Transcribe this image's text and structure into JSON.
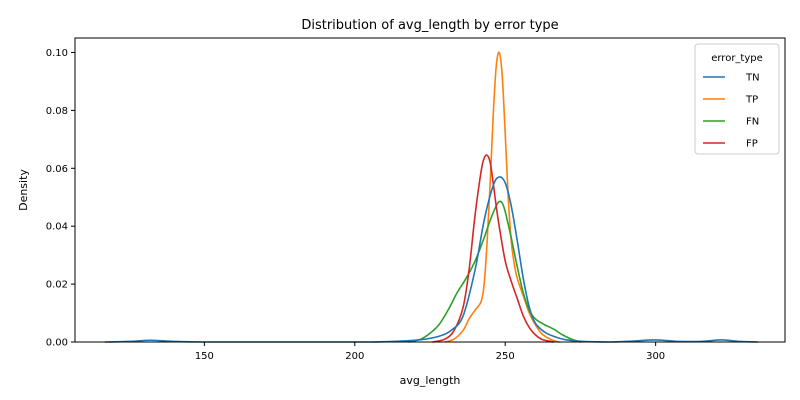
{
  "chart_data": {
    "type": "line",
    "title": "Distribution of avg_length by error type",
    "xlabel": "avg_length",
    "ylabel": "Density",
    "xlim": [
      107,
      343
    ],
    "ylim": [
      0,
      0.105
    ],
    "xticks": [
      150,
      200,
      250,
      300
    ],
    "yticks": [
      0.0,
      0.02,
      0.04,
      0.06,
      0.08,
      0.1
    ],
    "ytick_labels": [
      "0.00",
      "0.02",
      "0.04",
      "0.06",
      "0.08",
      "0.10"
    ],
    "grid": false,
    "legend": {
      "title": "error_type",
      "placement": "top-right"
    },
    "series": [
      {
        "name": "TN",
        "color": "#1f77b4",
        "x": [
          117,
          125,
          132,
          140,
          150,
          170,
          190,
          205,
          215,
          222,
          228,
          232,
          236,
          240,
          243,
          246,
          248,
          250,
          252,
          254,
          256,
          258,
          260,
          263,
          266,
          270,
          276,
          285,
          292,
          300,
          308,
          315,
          322,
          328,
          334
        ],
        "y": [
          0.0,
          0.0002,
          0.0006,
          0.0002,
          0.0,
          0.0,
          0.0,
          0.0,
          0.0003,
          0.0008,
          0.002,
          0.004,
          0.009,
          0.025,
          0.042,
          0.054,
          0.057,
          0.055,
          0.047,
          0.035,
          0.022,
          0.012,
          0.0065,
          0.0035,
          0.002,
          0.0008,
          0.0002,
          0.0,
          0.0003,
          0.0007,
          0.0002,
          0.0002,
          0.0007,
          0.0002,
          0.0
        ]
      },
      {
        "name": "TP",
        "color": "#ff7f0e",
        "x": [
          230,
          233,
          236,
          238,
          240,
          242,
          243,
          244,
          245,
          246,
          247,
          248,
          249,
          250,
          251,
          252,
          253,
          254,
          256,
          258,
          260,
          262,
          264,
          266,
          268
        ],
        "y": [
          0.0,
          0.001,
          0.004,
          0.008,
          0.011,
          0.014,
          0.02,
          0.035,
          0.055,
          0.078,
          0.095,
          0.1,
          0.092,
          0.072,
          0.05,
          0.035,
          0.027,
          0.022,
          0.016,
          0.01,
          0.006,
          0.003,
          0.0015,
          0.0005,
          0.0
        ]
      },
      {
        "name": "FN",
        "color": "#2ca02c",
        "x": [
          218,
          222,
          225,
          228,
          231,
          234,
          237,
          240,
          243,
          245,
          247,
          248,
          249,
          250,
          252,
          254,
          256,
          258,
          260,
          263,
          266,
          269,
          272,
          275
        ],
        "y": [
          0.0,
          0.001,
          0.003,
          0.006,
          0.011,
          0.017,
          0.022,
          0.028,
          0.036,
          0.042,
          0.047,
          0.0485,
          0.048,
          0.045,
          0.036,
          0.026,
          0.017,
          0.011,
          0.008,
          0.006,
          0.0045,
          0.0025,
          0.001,
          0.0
        ]
      },
      {
        "name": "FP",
        "color": "#d62728",
        "x": [
          226,
          230,
          233,
          236,
          238,
          240,
          242,
          243,
          244,
          245,
          246,
          247,
          248,
          250,
          252,
          254,
          256,
          258,
          260,
          262,
          264,
          266
        ],
        "y": [
          0.0,
          0.001,
          0.004,
          0.012,
          0.025,
          0.044,
          0.059,
          0.0635,
          0.0645,
          0.062,
          0.055,
          0.047,
          0.04,
          0.028,
          0.021,
          0.015,
          0.009,
          0.005,
          0.0025,
          0.001,
          0.0004,
          0.0
        ]
      }
    ]
  }
}
